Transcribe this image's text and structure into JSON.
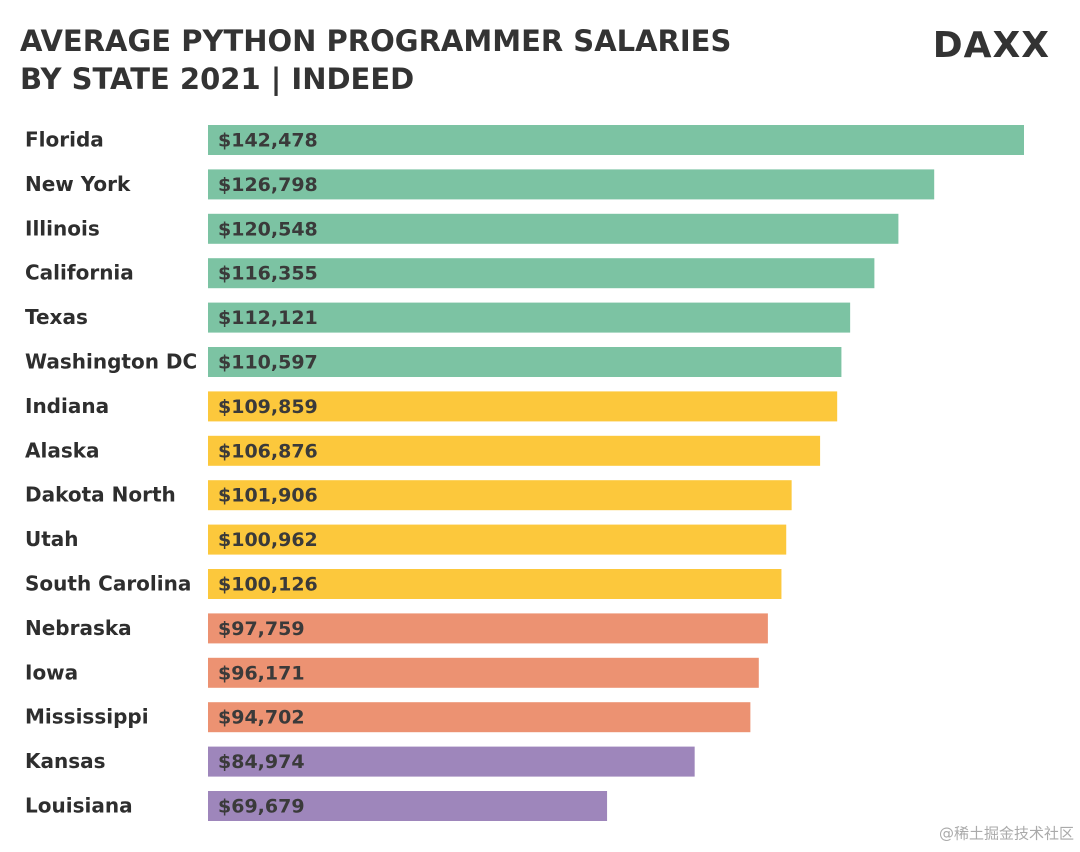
{
  "chart_data": {
    "type": "bar",
    "orientation": "horizontal",
    "title": "AVERAGE PYTHON PROGRAMMER SALARIES BY STATE 2021 | INDEED",
    "logo": "DAXX",
    "watermark": "@稀土掘金技术社区",
    "categories": [
      "Florida",
      "New York",
      "Illinois",
      "California",
      "Texas",
      "Washington DC",
      "Indiana",
      "Alaska",
      "Dakota North",
      "Utah",
      "South Carolina",
      "Nebraska",
      "Iowa",
      "Mississippi",
      "Kansas",
      "Louisiana"
    ],
    "values": [
      142478,
      126798,
      120548,
      116355,
      112121,
      110597,
      109859,
      106876,
      101906,
      100962,
      100126,
      97759,
      96171,
      94702,
      84974,
      69679
    ],
    "value_labels": [
      "$142,478",
      "$126,798",
      "$120,548",
      "$116,355",
      "$112,121",
      "$110,597",
      "$109,859",
      "$106,876",
      "$101,906",
      "$100,962",
      "$100,126",
      "$97,759",
      "$96,171",
      "$94,702",
      "$84,974",
      "$69,679"
    ],
    "colors": [
      "#7cc3a3",
      "#7cc3a3",
      "#7cc3a3",
      "#7cc3a3",
      "#7cc3a3",
      "#7cc3a3",
      "#fcc83c",
      "#fcc83c",
      "#fcc83c",
      "#fcc83c",
      "#fcc83c",
      "#ec9272",
      "#ec9272",
      "#ec9272",
      "#9e86bb",
      "#9e86bb"
    ]
  }
}
